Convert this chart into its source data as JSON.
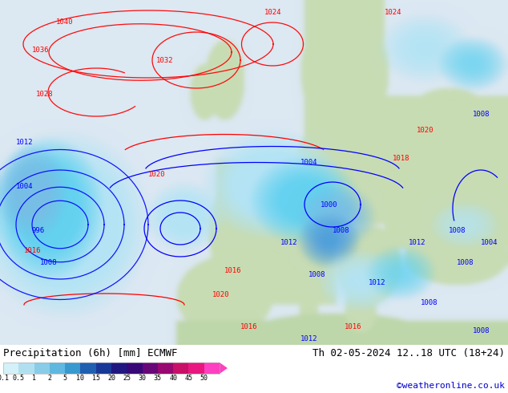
{
  "title_left": "Precipitation (6h) [mm] ECMWF",
  "title_right": "Th 02-05-2024 12..18 UTC (18+24)",
  "credit": "©weatheronline.co.uk",
  "colorbar_colors": [
    "#d4f0f8",
    "#b0e0f0",
    "#88cce8",
    "#60b8e0",
    "#3898d0",
    "#2060b0",
    "#183898",
    "#201880",
    "#380878",
    "#680878",
    "#980870",
    "#c81068",
    "#e81880",
    "#ff40c0"
  ],
  "colorbar_labels": [
    "0.1",
    "0.5",
    "1",
    "2",
    "5",
    "10",
    "15",
    "20",
    "25",
    "30",
    "35",
    "40",
    "45",
    "50"
  ],
  "text_color": "#000000",
  "credit_color": "#0000cc",
  "font_size_title": 9,
  "font_size_credit": 8,
  "map_land_color": [
    200,
    220,
    180
  ],
  "map_ocean_color": [
    220,
    235,
    245
  ],
  "map_bg_light": [
    230,
    230,
    230
  ],
  "precip_light": [
    180,
    230,
    248
  ],
  "precip_mid": [
    100,
    180,
    230
  ],
  "precip_dark": [
    50,
    120,
    200
  ]
}
